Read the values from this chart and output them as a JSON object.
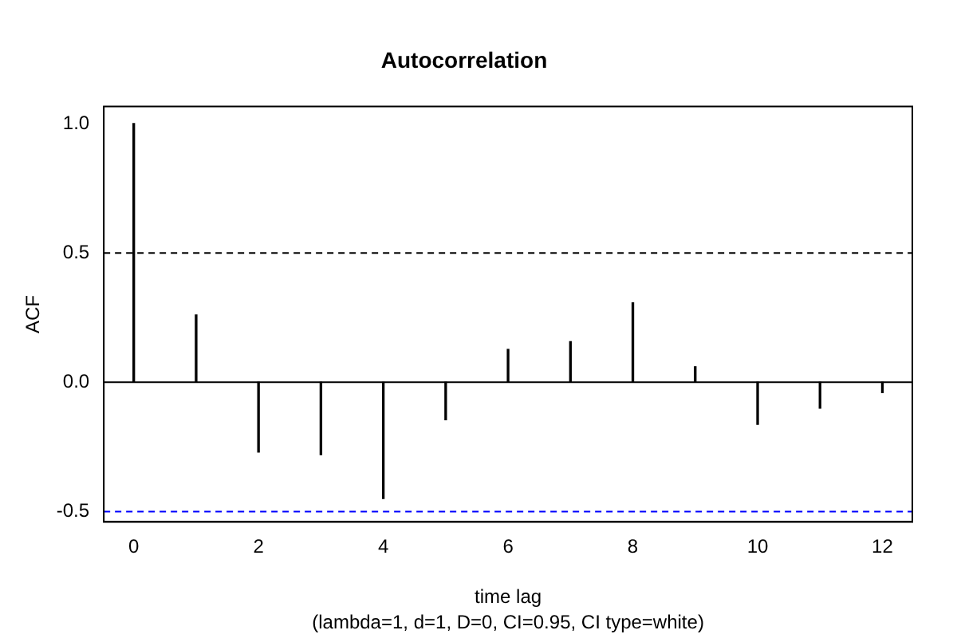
{
  "chart_data": {
    "type": "bar",
    "title": "Autocorrelation",
    "xlabel": "time lag",
    "ylabel": "ACF",
    "annotations": [
      "(lambda=1, d=1, D=0, CI=0.95, CI type=white)"
    ],
    "x": [
      0,
      1,
      2,
      3,
      4,
      5,
      6,
      7,
      8,
      9,
      10,
      11,
      12
    ],
    "values": [
      1.0,
      0.26,
      -0.27,
      -0.28,
      -0.45,
      -0.145,
      0.127,
      0.157,
      0.307,
      0.06,
      -0.163,
      -0.1,
      -0.04
    ],
    "color": "#000000",
    "xlim": [
      -0.48,
      12.48
    ],
    "xticks": [
      0,
      2,
      4,
      6,
      8,
      10,
      12
    ],
    "ylim": [
      -0.54,
      1.066
    ],
    "yticks": [
      -0.5,
      {
        "value": 0,
        "label": "0.0"
      },
      0.5,
      {
        "value": 1,
        "label": "1.0"
      }
    ],
    "ref_lines": [
      {
        "axis": "y",
        "value": 0,
        "color": "#000000",
        "line_style": "solid"
      },
      {
        "axis": "y",
        "value": 0.5,
        "color": "#000000",
        "line_style": "dashed"
      },
      {
        "axis": "y",
        "value": -0.5,
        "color": "#0000ff",
        "line_style": "dashed"
      }
    ],
    "grid": false,
    "legend": false
  }
}
